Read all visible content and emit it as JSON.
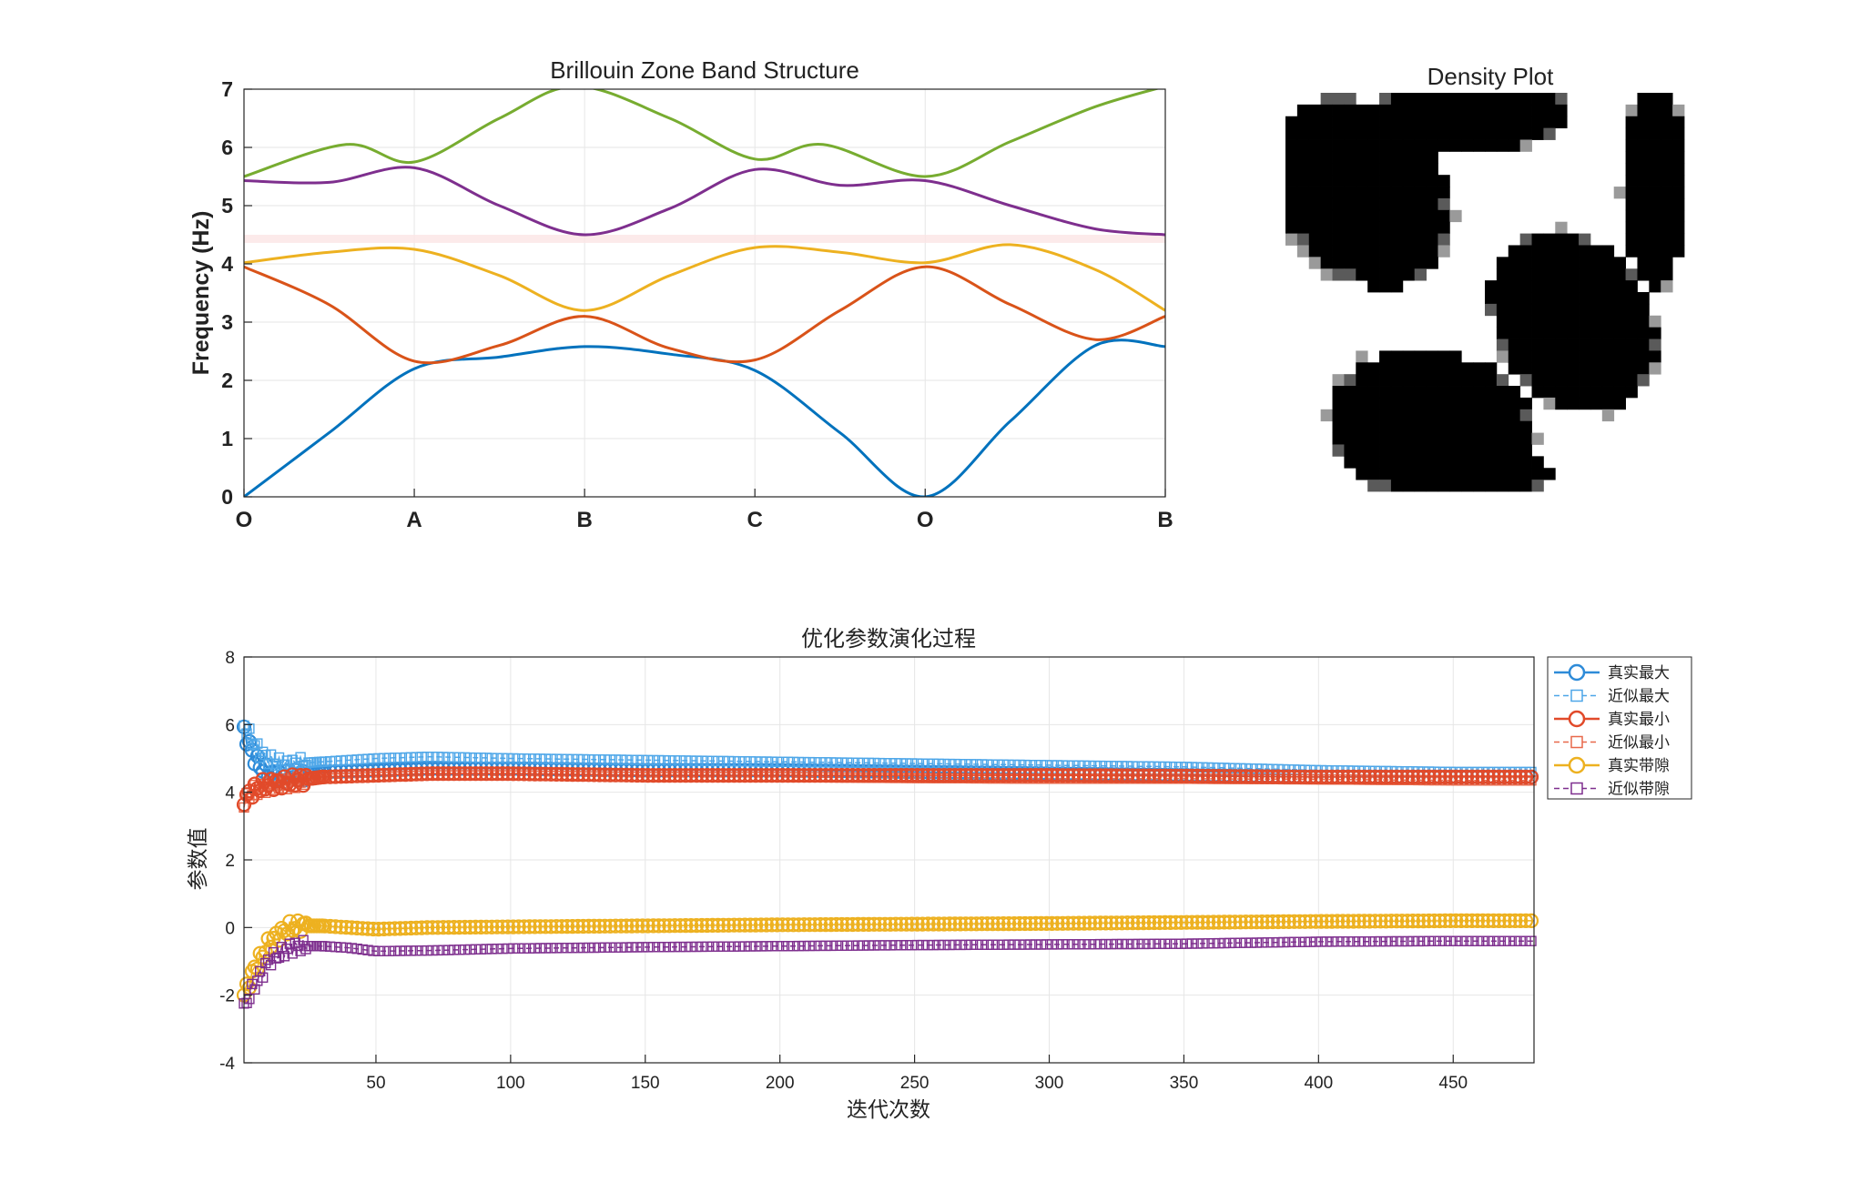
{
  "chart_data": [
    {
      "type": "line",
      "title": "Brillouin Zone Band Structure",
      "xlabel": "",
      "ylabel": "Frequency (Hz)",
      "ylim": [
        0,
        7
      ],
      "yticks": [
        0,
        1,
        2,
        3,
        4,
        5,
        6,
        7
      ],
      "xticks": [
        0,
        1,
        2,
        3,
        4,
        5.41
      ],
      "xtick_labels": [
        "O",
        "A",
        "B",
        "C",
        "O",
        "B"
      ],
      "xlim": [
        0,
        5.41
      ],
      "grid": true,
      "band_gap_highlight": [
        4.36,
        4.5
      ],
      "colors": [
        "#0072BD",
        "#D95319",
        "#EDB120",
        "#7E2F8E",
        "#77AC30"
      ],
      "series": [
        {
          "x": [
            0,
            0.5,
            1,
            1.5,
            2,
            2.5,
            3,
            3.5,
            4,
            4.5,
            5,
            5.41
          ],
          "values": [
            0,
            1.1,
            2.2,
            2.4,
            2.58,
            2.45,
            2.17,
            1.1,
            0,
            1.3,
            2.6,
            2.58
          ]
        },
        {
          "x": [
            0,
            0.5,
            1,
            1.5,
            2,
            2.5,
            3,
            3.5,
            4,
            4.5,
            5,
            5.41
          ],
          "values": [
            3.95,
            3.3,
            2.33,
            2.6,
            3.1,
            2.55,
            2.35,
            3.2,
            3.95,
            3.3,
            2.7,
            3.1
          ]
        },
        {
          "x": [
            0,
            0.5,
            1,
            1.5,
            2,
            2.5,
            3,
            3.5,
            4,
            4.5,
            5,
            5.41
          ],
          "values": [
            4.02,
            4.2,
            4.25,
            3.8,
            3.2,
            3.8,
            4.28,
            4.2,
            4.02,
            4.33,
            3.9,
            3.2
          ]
        },
        {
          "x": [
            0,
            0.5,
            1,
            1.5,
            2,
            2.5,
            3,
            3.5,
            4,
            4.5,
            5,
            5.41
          ],
          "values": [
            5.43,
            5.4,
            5.65,
            5.0,
            4.5,
            4.95,
            5.62,
            5.35,
            5.43,
            5.0,
            4.6,
            4.5
          ]
        },
        {
          "x": [
            0,
            0.6,
            1,
            1.5,
            1.95,
            2.5,
            3,
            3.4,
            4,
            4.5,
            5,
            5.41
          ],
          "values": [
            5.5,
            6.05,
            5.75,
            6.5,
            7.05,
            6.5,
            5.8,
            6.05,
            5.5,
            6.1,
            6.7,
            7.05
          ]
        }
      ]
    },
    {
      "type": "heatmap",
      "title": "Density Plot",
      "colormap": "gray (1 = black, 0 = white)",
      "grid_size": [
        34,
        34
      ]
    },
    {
      "type": "line",
      "title": "优化参数演化过程",
      "xlabel": "迭代次数",
      "ylabel": "参数值",
      "xlim": [
        1,
        480
      ],
      "ylim": [
        -4,
        8
      ],
      "xticks": [
        50,
        100,
        150,
        200,
        250,
        300,
        350,
        400,
        450
      ],
      "yticks": [
        -4,
        -2,
        0,
        2,
        4,
        6,
        8
      ],
      "grid": true,
      "legend_position": "top-right",
      "series": [
        {
          "name": "真实最大",
          "color": "#2E8BD8",
          "marker": "circle",
          "linestyle": "solid",
          "x": [
            1,
            3,
            5,
            8,
            12,
            16,
            20,
            30,
            50,
            70,
            100,
            150,
            200,
            250,
            300,
            350,
            400,
            450,
            480
          ],
          "values": [
            5.8,
            5.4,
            5.0,
            4.7,
            4.5,
            4.45,
            4.5,
            4.6,
            4.65,
            4.7,
            4.7,
            4.65,
            4.65,
            4.6,
            4.55,
            4.5,
            4.45,
            4.45,
            4.45
          ]
        },
        {
          "name": "近似最大",
          "color": "#4DA6E8",
          "marker": "square",
          "linestyle": "dashed",
          "x": [
            1,
            3,
            5,
            8,
            12,
            16,
            20,
            30,
            50,
            70,
            100,
            150,
            200,
            250,
            300,
            350,
            400,
            450,
            480
          ],
          "values": [
            6.0,
            5.7,
            5.4,
            5.1,
            4.9,
            4.8,
            4.85,
            4.9,
            5.0,
            5.05,
            5.0,
            4.95,
            4.9,
            4.85,
            4.8,
            4.75,
            4.65,
            4.6,
            4.6
          ]
        },
        {
          "name": "真实最小",
          "color": "#E14A2A",
          "marker": "circle",
          "linestyle": "solid",
          "x": [
            1,
            3,
            5,
            8,
            12,
            16,
            20,
            30,
            50,
            70,
            100,
            150,
            200,
            250,
            300,
            350,
            400,
            450,
            480
          ],
          "values": [
            3.8,
            3.95,
            4.1,
            4.2,
            4.25,
            4.3,
            4.35,
            4.45,
            4.5,
            4.55,
            4.55,
            4.5,
            4.5,
            4.5,
            4.5,
            4.48,
            4.45,
            4.45,
            4.45
          ]
        },
        {
          "name": "近似最小",
          "color": "#E8684A",
          "marker": "square",
          "linestyle": "dashed",
          "x": [
            1,
            3,
            5,
            8,
            12,
            16,
            20,
            30,
            50,
            70,
            100,
            150,
            200,
            250,
            300,
            350,
            400,
            450,
            480
          ],
          "values": [
            3.7,
            3.9,
            4.05,
            4.15,
            4.2,
            4.25,
            4.3,
            4.4,
            4.45,
            4.5,
            4.5,
            4.45,
            4.45,
            4.42,
            4.4,
            4.4,
            4.38,
            4.35,
            4.35
          ]
        },
        {
          "name": "真实带隙",
          "color": "#EDB120",
          "marker": "circle",
          "linestyle": "solid",
          "x": [
            1,
            3,
            5,
            8,
            10,
            14,
            18,
            22,
            30,
            40,
            50,
            70,
            100,
            150,
            200,
            250,
            300,
            350,
            400,
            450,
            480
          ],
          "values": [
            -2.0,
            -1.6,
            -1.2,
            -0.8,
            -0.5,
            -0.2,
            0.0,
            0.05,
            0.05,
            0.0,
            -0.05,
            0.0,
            0.02,
            0.05,
            0.08,
            0.1,
            0.12,
            0.15,
            0.18,
            0.2,
            0.2
          ]
        },
        {
          "name": "近似带隙",
          "color": "#7E2F8E",
          "marker": "square",
          "linestyle": "dashed",
          "x": [
            1,
            3,
            5,
            8,
            10,
            14,
            18,
            22,
            30,
            40,
            50,
            70,
            100,
            150,
            200,
            250,
            300,
            350,
            400,
            450,
            480
          ],
          "values": [
            -2.4,
            -2.0,
            -1.7,
            -1.3,
            -1.0,
            -0.8,
            -0.6,
            -0.55,
            -0.55,
            -0.6,
            -0.7,
            -0.68,
            -0.62,
            -0.58,
            -0.55,
            -0.52,
            -0.5,
            -0.48,
            -0.42,
            -0.4,
            -0.4
          ]
        }
      ]
    }
  ]
}
